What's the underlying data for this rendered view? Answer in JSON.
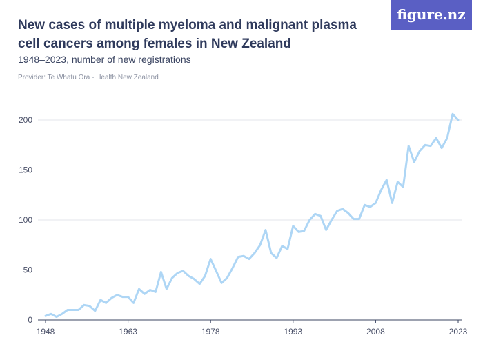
{
  "header": {
    "title": "New cases of multiple myeloma and malignant plasma cell cancers among females in New Zealand",
    "subtitle": "1948–2023, number of new registrations",
    "provider": "Provider: Te Whatu Ora - Health New Zealand",
    "brand": "figure.nz"
  },
  "colors": {
    "line": "#aed6f5",
    "grid": "#e3e6eb",
    "axis": "#3b4562",
    "brand": "#5a5fc4"
  },
  "chart_data": {
    "type": "line",
    "title": "New cases of multiple myeloma and malignant plasma cell cancers among females in New Zealand",
    "subtitle": "1948–2023, number of new registrations",
    "xlabel": "",
    "ylabel": "",
    "xlim": [
      1948,
      2023
    ],
    "ylim": [
      0,
      200
    ],
    "yticks": [
      0,
      50,
      100,
      150,
      200
    ],
    "xticks": [
      1948,
      1963,
      1978,
      1993,
      2008,
      2023
    ],
    "grid": true,
    "series": [
      {
        "x": [
          1948,
          1949,
          1950,
          1951,
          1952,
          1953,
          1954,
          1955,
          1956,
          1957,
          1958,
          1959,
          1960,
          1961,
          1962,
          1963,
          1964,
          1965,
          1966,
          1967,
          1968,
          1969,
          1970,
          1971,
          1972,
          1973,
          1974,
          1975,
          1976,
          1977,
          1978,
          1979,
          1980,
          1981,
          1982,
          1983,
          1984,
          1985,
          1986,
          1987,
          1988,
          1989,
          1990,
          1991,
          1992,
          1993,
          1994,
          1995,
          1996,
          1997,
          1998,
          1999,
          2000,
          2001,
          2002,
          2003,
          2004,
          2005,
          2006,
          2007,
          2008,
          2009,
          2010,
          2011,
          2012,
          2013,
          2014,
          2015,
          2016,
          2017,
          2018,
          2019,
          2020,
          2021,
          2022,
          2023
        ],
        "values": [
          4,
          6,
          3,
          6,
          10,
          10,
          10,
          15,
          14,
          9,
          20,
          17,
          22,
          25,
          23,
          23,
          17,
          31,
          26,
          30,
          28,
          48,
          31,
          42,
          47,
          49,
          44,
          41,
          36,
          44,
          61,
          49,
          37,
          42,
          52,
          63,
          64,
          61,
          67,
          75,
          90,
          67,
          62,
          74,
          71,
          94,
          88,
          89,
          100,
          106,
          104,
          90,
          100,
          109,
          111,
          107,
          101,
          101,
          115,
          113,
          117,
          130,
          140,
          117,
          138,
          133,
          174,
          158,
          169,
          175,
          174,
          182,
          172,
          182,
          206,
          200
        ]
      }
    ]
  }
}
